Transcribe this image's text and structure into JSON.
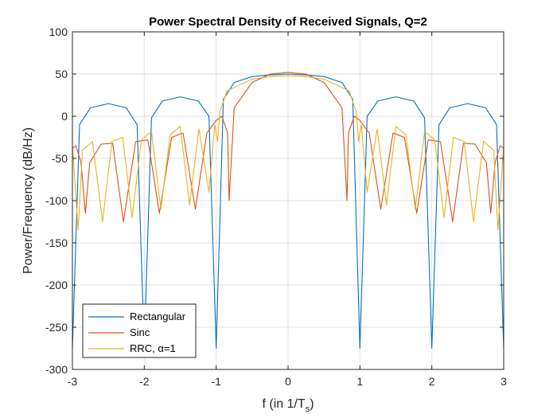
{
  "chart_data": {
    "type": "line",
    "title": "Power Spectral Density of Received Signals, Q=2",
    "xlabel": "f (in 1/T",
    "xlabel_sub": "s",
    "xlabel_close": ")",
    "ylabel": "Power/Frequency (dB/Hz)",
    "xlim": [
      -3,
      3
    ],
    "ylim": [
      -300,
      100
    ],
    "xticks": [
      -3,
      -2,
      -1,
      0,
      1,
      2,
      3
    ],
    "yticks": [
      100,
      50,
      0,
      -50,
      -100,
      -150,
      -200,
      -250,
      -300
    ],
    "xtick_labels": [
      "-3",
      "-2",
      "-1",
      "0",
      "1",
      "2",
      "3"
    ],
    "ytick_labels": [
      "100",
      "50",
      "0",
      "-50",
      "-100",
      "-150",
      "-200",
      "-250",
      "-300"
    ],
    "grid": true,
    "legend_position": "bottom-left",
    "series": [
      {
        "name": "Rectangular",
        "color": "#0072BD",
        "x": [
          -3,
          -2.9,
          -2.75,
          -2.5,
          -2.25,
          -2.1,
          -2,
          -1.9,
          -1.75,
          -1.5,
          -1.25,
          -1.1,
          -1,
          -0.9,
          -0.75,
          -0.5,
          -0.25,
          0,
          0.25,
          0.5,
          0.75,
          0.9,
          1,
          1.1,
          1.25,
          1.5,
          1.75,
          1.9,
          2,
          2.1,
          2.25,
          2.5,
          2.75,
          2.9,
          3
        ],
        "values": [
          -275,
          -10,
          10,
          15,
          10,
          -10,
          -275,
          -2,
          18,
          23,
          18,
          0,
          -275,
          20,
          40,
          47,
          49,
          50,
          49,
          47,
          40,
          20,
          -275,
          0,
          18,
          23,
          18,
          -2,
          -275,
          -10,
          10,
          15,
          10,
          -10,
          -275
        ]
      },
      {
        "name": "Sinc",
        "color": "#D95319",
        "x": [
          -3,
          -2.95,
          -2.88,
          -2.82,
          -2.76,
          -2.6,
          -2.44,
          -2.29,
          -2.12,
          -1.95,
          -1.79,
          -1.62,
          -1.46,
          -1.29,
          -1.13,
          -1,
          -0.92,
          -0.84,
          -0.82,
          -0.75,
          -0.5,
          -0.25,
          0,
          0.25,
          0.5,
          0.75,
          0.82,
          0.84,
          0.92,
          1,
          1.13,
          1.29,
          1.46,
          1.62,
          1.79,
          1.95,
          2.12,
          2.29,
          2.44,
          2.6,
          2.76,
          2.82,
          2.88,
          2.95,
          3
        ],
        "values": [
          -38,
          -35,
          -55,
          -115,
          -55,
          -33,
          -32,
          -125,
          -30,
          -28,
          -115,
          -25,
          -20,
          -110,
          -20,
          -5,
          0,
          -20,
          -100,
          10,
          40,
          50,
          52,
          50,
          40,
          10,
          -100,
          -20,
          0,
          -5,
          -20,
          -110,
          -20,
          -25,
          -115,
          -28,
          -30,
          -125,
          -32,
          -33,
          -55,
          -115,
          -55,
          -35,
          -38
        ]
      },
      {
        "name": "RRC, α=1",
        "color": "#EDB120",
        "x": [
          -3,
          -2.92,
          -2.86,
          -2.72,
          -2.58,
          -2.45,
          -2.3,
          -2.17,
          -2.04,
          -1.9,
          -1.77,
          -1.64,
          -1.5,
          -1.37,
          -1.24,
          -1.1,
          -1.02,
          -0.98,
          -0.95,
          -0.85,
          -0.5,
          -0.25,
          0,
          0.25,
          0.5,
          0.85,
          0.95,
          0.98,
          1.02,
          1.1,
          1.24,
          1.37,
          1.5,
          1.64,
          1.77,
          1.9,
          2.04,
          2.17,
          2.3,
          2.45,
          2.58,
          2.72,
          2.86,
          2.92,
          3
        ],
        "values": [
          -35,
          -135,
          -40,
          -30,
          -125,
          -30,
          -25,
          -120,
          -28,
          -18,
          -110,
          -22,
          -12,
          -105,
          -15,
          -90,
          -10,
          -30,
          5,
          30,
          44,
          47,
          48,
          47,
          44,
          30,
          5,
          -30,
          -10,
          -90,
          -15,
          -105,
          -12,
          -22,
          -110,
          -18,
          -28,
          -120,
          -25,
          -30,
          -125,
          -30,
          -40,
          -135,
          -35
        ]
      }
    ]
  }
}
